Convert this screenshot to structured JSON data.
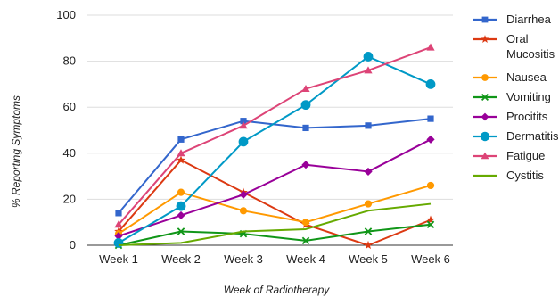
{
  "chart_data": {
    "type": "line",
    "title": "",
    "xlabel": "Week of Radiotherapy",
    "ylabel": "% Reporting Symptoms",
    "categories": [
      "Week 1",
      "Week 2",
      "Week 3",
      "Week 4",
      "Week 5",
      "Week 6"
    ],
    "ylim": [
      0,
      100
    ],
    "yticks": [
      0,
      20,
      40,
      60,
      80,
      100
    ],
    "grid": true,
    "legend_position": "right",
    "series": [
      {
        "name": "Diarrhea",
        "color": "#3366cc",
        "marker": "square",
        "values": [
          14,
          46,
          54,
          51,
          52,
          55
        ]
      },
      {
        "name": "Oral Mucositis",
        "name_lines": [
          "Oral",
          "Mucositis"
        ],
        "color": "#dc3912",
        "marker": "star",
        "values": [
          6,
          37,
          23,
          9,
          0,
          11
        ]
      },
      {
        "name": "Nausea",
        "color": "#ff9900",
        "marker": "circle",
        "values": [
          5,
          23,
          15,
          10,
          18,
          26
        ]
      },
      {
        "name": "Vomiting",
        "color": "#109618",
        "marker": "x",
        "values": [
          0,
          6,
          5,
          2,
          6,
          9
        ]
      },
      {
        "name": "Procitits",
        "color": "#990099",
        "marker": "diamond",
        "values": [
          4,
          13,
          22,
          35,
          32,
          46
        ]
      },
      {
        "name": "Dermatitis",
        "color": "#0099c6",
        "marker": "bigcircle",
        "values": [
          1,
          17,
          45,
          61,
          82,
          70
        ]
      },
      {
        "name": "Fatigue",
        "color": "#dd4477",
        "marker": "triangle",
        "values": [
          9,
          40,
          52,
          68,
          76,
          86
        ]
      },
      {
        "name": "Cystitis",
        "color": "#66aa00",
        "marker": "none",
        "values": [
          0,
          1,
          6,
          7,
          15,
          18
        ]
      }
    ]
  }
}
